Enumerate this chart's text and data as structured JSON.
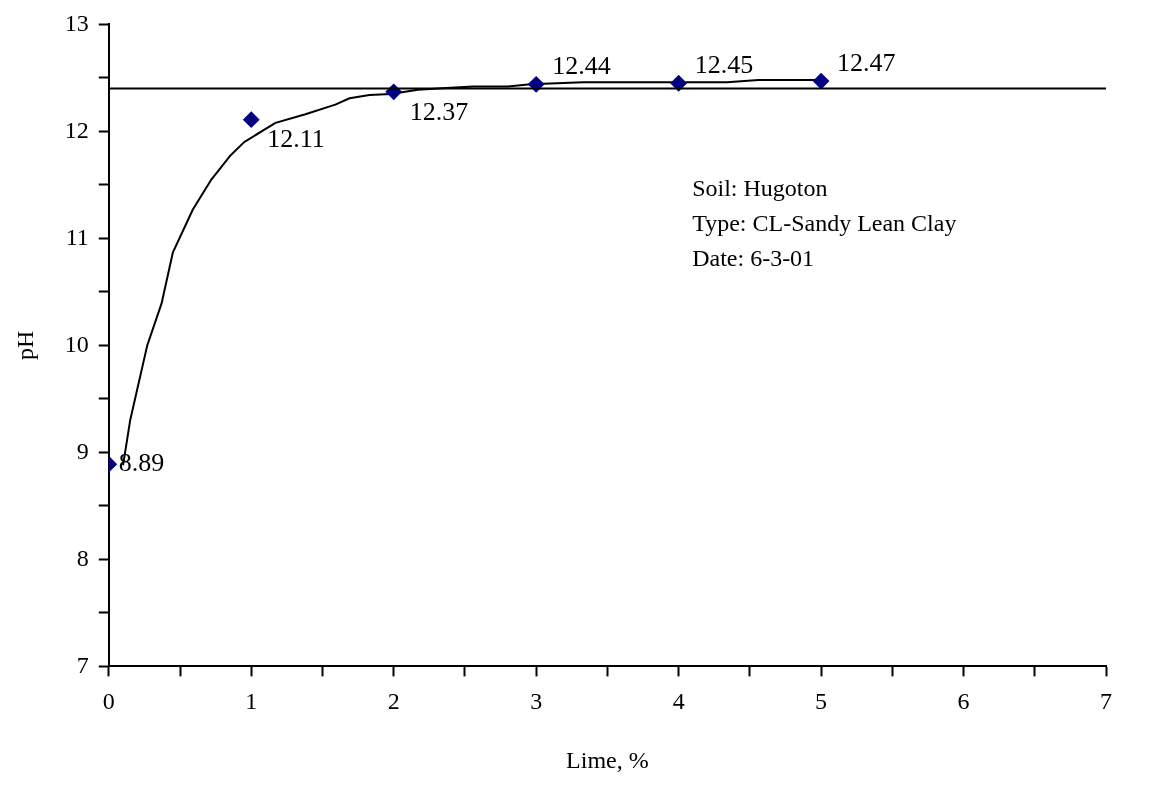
{
  "chart_data": {
    "type": "scatter",
    "xlabel": "Lime, %",
    "ylabel": "pH",
    "xlim": [
      0,
      7
    ],
    "ylim": [
      7,
      13
    ],
    "xticks": [
      0,
      {
        "value": 0.5,
        "label": null
      },
      1,
      {
        "value": 1.5,
        "label": null
      },
      2,
      {
        "value": 2.5,
        "label": null
      },
      3,
      {
        "value": 3.5,
        "label": null
      },
      4,
      {
        "value": 4.5,
        "label": null
      },
      5,
      {
        "value": 5.5,
        "label": null
      },
      6,
      {
        "value": 6.5,
        "label": null
      },
      7
    ],
    "yticks": [
      7,
      {
        "value": 7.5,
        "label": null
      },
      8,
      {
        "value": 8.5,
        "label": null
      },
      9,
      {
        "value": 9.5,
        "label": null
      },
      10,
      {
        "value": 10.5,
        "label": null
      },
      11,
      {
        "value": 11.5,
        "label": null
      },
      12,
      {
        "value": 12.5,
        "label": null
      },
      13
    ],
    "x": [
      0,
      1,
      2,
      3,
      4,
      5
    ],
    "series": [
      {
        "type": "scatter",
        "color": "#000080",
        "marker": "diamond",
        "values": [
          8.89,
          12.11,
          12.37,
          12.44,
          12.45,
          12.47
        ],
        "value_labels": [
          "8.89",
          "12.11",
          "12.37",
          "12.44",
          "12.45",
          "12.47"
        ]
      },
      {
        "type": "line",
        "color": "#000000",
        "marker": "none",
        "x": [
          0.1,
          0.15,
          0.27,
          0.37,
          0.45,
          0.59,
          0.72,
          0.85,
          0.95,
          1.17,
          1.38,
          1.59,
          1.69,
          1.83,
          1.98,
          2.17,
          2.43,
          2.56,
          2.8,
          2.96,
          3.33,
          4.34,
          4.56,
          5.03
        ],
        "values": [
          8.88,
          9.3,
          10.0,
          10.39,
          10.87,
          11.27,
          11.55,
          11.77,
          11.9,
          12.08,
          12.16,
          12.25,
          12.31,
          12.34,
          12.35,
          12.39,
          12.41,
          12.42,
          12.42,
          12.44,
          12.46,
          12.46,
          12.48,
          12.48
        ]
      }
    ],
    "ref_lines": [
      {
        "axis": "y",
        "value": 12.4,
        "color": "#000000"
      }
    ],
    "annotations": [
      "Soil: Hugoton",
      "Type: CL-Sandy Lean Clay",
      "Date: 6-3-01"
    ],
    "grid": false,
    "legend": false
  }
}
